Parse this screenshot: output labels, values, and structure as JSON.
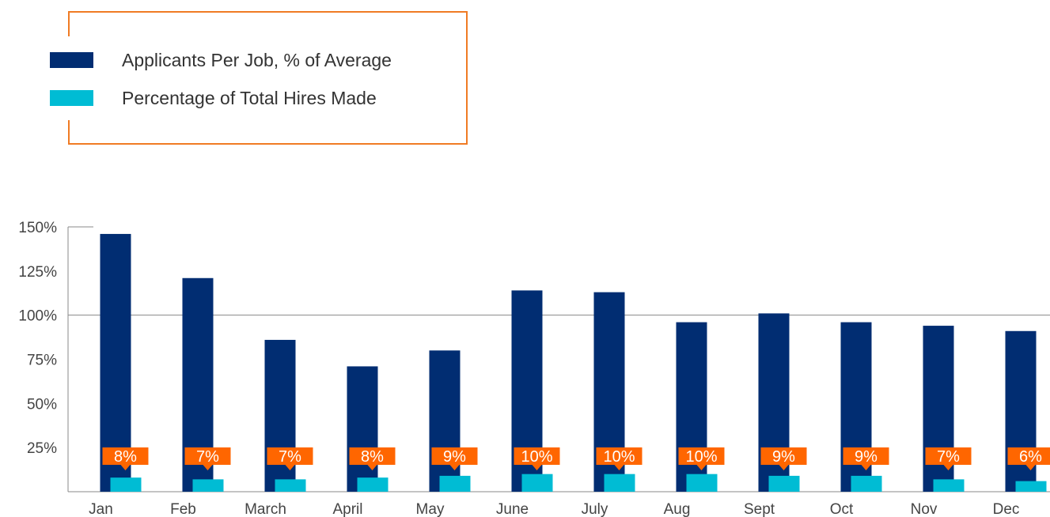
{
  "legend": {
    "items": [
      {
        "label": "Applicants Per Job, % of Average",
        "color": "#012d72"
      },
      {
        "label": "Percentage of Total Hires Made",
        "color": "#00bcd4"
      }
    ],
    "border_color": "#f07b24"
  },
  "chart_data": {
    "type": "bar",
    "categories": [
      "Jan",
      "Feb",
      "March",
      "April",
      "May",
      "June",
      "July",
      "Aug",
      "Sept",
      "Oct",
      "Nov",
      "Dec"
    ],
    "series": [
      {
        "name": "Applicants Per Job, % of Average",
        "values": [
          146,
          121,
          86,
          71,
          80,
          114,
          113,
          96,
          101,
          96,
          94,
          91
        ]
      },
      {
        "name": "Percentage of Total Hires Made",
        "values": [
          8,
          7,
          7,
          8,
          9,
          10,
          10,
          10,
          9,
          9,
          7,
          6
        ]
      }
    ],
    "data_labels": [
      "8%",
      "7%",
      "7%",
      "8%",
      "9%",
      "10%",
      "10%",
      "10%",
      "9%",
      "9%",
      "7%",
      "6%"
    ],
    "y_ticks": [
      25,
      50,
      75,
      100,
      125,
      150
    ],
    "y_tick_labels": [
      "25%",
      "50%",
      "75%",
      "100%",
      "125%",
      "150%"
    ],
    "ylim": [
      0,
      150
    ],
    "reference_line": 100,
    "legend_position": "top-left",
    "label_color": "#ff6600"
  }
}
